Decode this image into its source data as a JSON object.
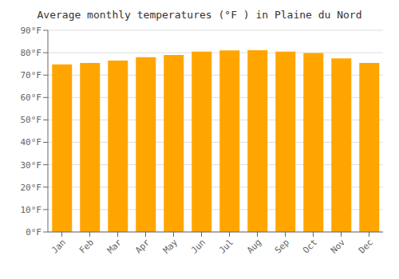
{
  "chart_data": {
    "type": "bar",
    "title": "Average monthly temperatures (°F ) in Plaine du Nord",
    "categories": [
      "Jan",
      "Feb",
      "Mar",
      "Apr",
      "May",
      "Jun",
      "Jul",
      "Aug",
      "Sep",
      "Oct",
      "Nov",
      "Dec"
    ],
    "values": [
      74.8,
      75.4,
      76.5,
      78.0,
      79.0,
      80.5,
      81.0,
      81.1,
      80.5,
      79.9,
      77.5,
      75.4
    ],
    "color": "#FFA500",
    "ylim": [
      0,
      90
    ],
    "yticks": [
      {
        "value": 0,
        "label": "0°F"
      },
      {
        "value": 10,
        "label": "10°F"
      },
      {
        "value": 20,
        "label": "20°F"
      },
      {
        "value": 30,
        "label": "30°F"
      },
      {
        "value": 40,
        "label": "40°F"
      },
      {
        "value": 50,
        "label": "50°F"
      },
      {
        "value": 60,
        "label": "60°F"
      },
      {
        "value": 70,
        "label": "70°F"
      },
      {
        "value": 80,
        "label": "80°F"
      },
      {
        "value": 90,
        "label": "90°F"
      }
    ],
    "grid": true
  }
}
